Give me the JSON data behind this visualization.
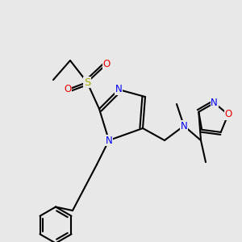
{
  "bg_color": "#e8e8e8",
  "bond_color": "#000000",
  "bond_width": 1.5,
  "atom_colors": {
    "N": "#0000ee",
    "O": "#ee0000",
    "S": "#aaaa00",
    "C": "#000000"
  },
  "font_size": 8.5
}
